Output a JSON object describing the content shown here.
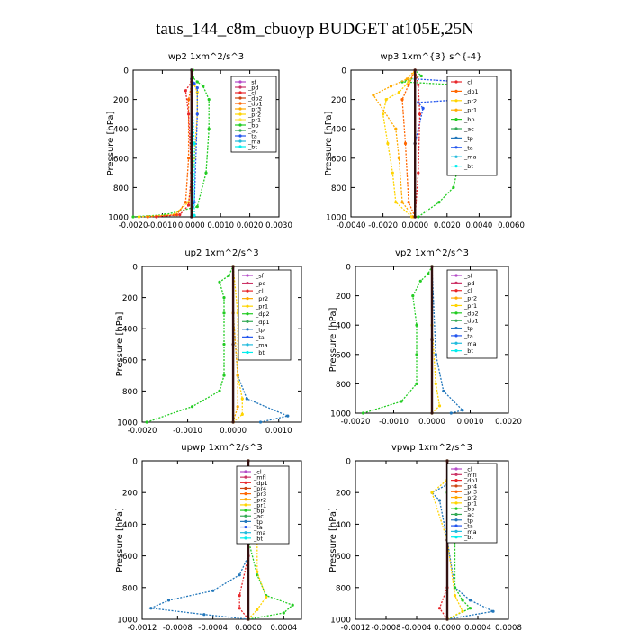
{
  "title": "taus_144_c8m_cbuoyp  BUDGET at105E,25N",
  "chart_data": [
    {
      "type": "line",
      "title": "wp2  1xm^2/s^3",
      "ylabel": "Pressure [hPa]",
      "xlim": [
        -0.002,
        0.003
      ],
      "ylim": [
        1000,
        0
      ],
      "xticks": [
        "-0.0020",
        "-0.0010",
        "0.0000",
        "0.0010",
        "0.0020",
        "0.0030"
      ],
      "yticks": [
        "0",
        "200",
        "400",
        "600",
        "800",
        "1000"
      ],
      "legend_position": "top-right",
      "legend": [
        "_sf",
        "_pd",
        "_cl",
        "_dp2",
        "_dp1",
        "_pr3",
        "_pr2",
        "_pr1",
        "_bp",
        "_ac",
        "_ta",
        "_ma",
        "_bt"
      ],
      "legend_colors": [
        "#b44ac8",
        "#cc3366",
        "#e8262a",
        "#cc4411",
        "#ff6600",
        "#ffaa00",
        "#ffd400",
        "#ffe24a",
        "#22cc22",
        "#33aa55",
        "#2255ee",
        "#22bbdd",
        "#00eeee"
      ],
      "series": [
        {
          "name": "_bp",
          "color": "#22cc22",
          "x": [
            -0.002,
            -0.0009,
            0.0002,
            0.0005,
            0.0006,
            0.0006,
            0.0004,
            0.0002,
            5e-05,
            5e-05
          ],
          "y": [
            1000,
            985,
            930,
            700,
            400,
            200,
            110,
            80,
            50,
            0
          ]
        },
        {
          "name": "_pr1",
          "color": "#ffd400",
          "x": [
            -0.0018,
            -0.0006,
            -0.0001,
            0.0001,
            0.0002,
            0.0002,
            0.0001,
            0.0,
            0.0
          ],
          "y": [
            1000,
            985,
            900,
            600,
            300,
            150,
            100,
            60,
            0
          ]
        },
        {
          "name": "_dp1",
          "color": "#ff6600",
          "x": [
            -0.0015,
            -0.0005,
            -0.0002,
            -0.0001,
            -0.0001,
            0.0,
            0.0
          ],
          "y": [
            1000,
            985,
            900,
            600,
            200,
            100,
            0
          ]
        },
        {
          "name": "_cl",
          "color": "#e8262a",
          "x": [
            -0.0012,
            -0.0004,
            -0.0001,
            0.0,
            -0.0001,
            -0.0002,
            0.0,
            0.0
          ],
          "y": [
            1000,
            985,
            920,
            700,
            300,
            140,
            80,
            0
          ]
        },
        {
          "name": "_ta",
          "color": "#2255ee",
          "x": [
            0.0,
            0.0001,
            0.0002,
            0.0002,
            0.0001,
            0.0,
            0.0
          ],
          "y": [
            1000,
            900,
            300,
            120,
            90,
            60,
            0
          ]
        },
        {
          "name": "_bt",
          "color": "#00eeee",
          "x": [
            0.0,
            0.0001,
            0.0001,
            0.0,
            0.0
          ],
          "y": [
            1000,
            990,
            500,
            100,
            0
          ]
        },
        {
          "name": "_ma",
          "color": "#331111",
          "x": [
            0.0,
            0.0,
            0.0
          ],
          "y": [
            1000,
            500,
            0
          ]
        }
      ]
    },
    {
      "type": "line",
      "title": "wp3  1xm^{3} s^{-4}",
      "ylabel": "Pressure [hPa]",
      "xlim": [
        -0.004,
        0.006
      ],
      "ylim": [
        1000,
        0
      ],
      "xticks": [
        "-0.0040",
        "-0.0020",
        "0.0000",
        "0.0020",
        "0.0040",
        "0.0060"
      ],
      "yticks": [
        "0",
        "200",
        "400",
        "600",
        "800",
        "1000"
      ],
      "legend_position": "top-right",
      "legend": [
        "_cl",
        "_dp1",
        "_pr2",
        "_pr1",
        "_bp",
        "_ac",
        "_tp",
        "_ta",
        "_ma",
        "_bt"
      ],
      "legend_colors": [
        "#e8262a",
        "#ff6600",
        "#ffd400",
        "#ffaa00",
        "#22cc22",
        "#33aa55",
        "#2277bb",
        "#2255ee",
        "#22bbdd",
        "#00eeee"
      ],
      "series": [
        {
          "name": "_bp",
          "color": "#22cc22",
          "x": [
            0.0002,
            0.0015,
            0.0024,
            0.0028,
            0.0028,
            0.003,
            0.0034,
            0.0025,
            -0.0008,
            0.0004,
            0.0
          ],
          "y": [
            1000,
            900,
            800,
            600,
            400,
            260,
            170,
            100,
            80,
            40,
            0
          ]
        },
        {
          "name": "_pr1",
          "color": "#ffd400",
          "x": [
            -0.0002,
            -0.0012,
            -0.0014,
            -0.0017,
            -0.002,
            -0.0018,
            -0.001,
            -0.0004,
            0.0
          ],
          "y": [
            1000,
            900,
            700,
            500,
            300,
            200,
            150,
            80,
            0
          ]
        },
        {
          "name": "_pr2",
          "color": "#ffaa00",
          "x": [
            -0.0001,
            -0.0008,
            -0.001,
            -0.0012,
            -0.0026,
            -0.0015,
            -0.0005,
            0.0
          ],
          "y": [
            1000,
            900,
            600,
            400,
            170,
            110,
            60,
            0
          ]
        },
        {
          "name": "_ta",
          "color": "#2255ee",
          "x": [
            0.0,
            0.0,
            0.0005,
            0.0002,
            0.003,
            0.004,
            0.003,
            0.0,
            0.0
          ],
          "y": [
            1000,
            500,
            260,
            220,
            200,
            120,
            80,
            60,
            0
          ]
        },
        {
          "name": "_dp1",
          "color": "#ff6600",
          "x": [
            0.0,
            -0.0004,
            -0.0006,
            -0.0008,
            -0.0004,
            0.0
          ],
          "y": [
            1000,
            900,
            500,
            200,
            100,
            0
          ]
        },
        {
          "name": "_cl",
          "color": "#e8262a",
          "x": [
            0.0,
            0.0002,
            0.0003,
            0.0002,
            0.0
          ],
          "y": [
            1000,
            700,
            300,
            100,
            0
          ]
        },
        {
          "name": "_ma",
          "color": "#331111",
          "x": [
            0.0,
            0.0,
            0.0
          ],
          "y": [
            1000,
            500,
            0
          ]
        }
      ]
    },
    {
      "type": "line",
      "title": "up2  1xm^2/s^3",
      "ylabel": "Pressure [hPa]",
      "xlim": [
        -0.002,
        0.0015
      ],
      "ylim": [
        1000,
        0
      ],
      "xticks": [
        "-0.0020",
        "-0.0010",
        "0.0000",
        "0.0010"
      ],
      "yticks": [
        "0",
        "200",
        "400",
        "600",
        "800",
        "1000"
      ],
      "legend_position": "top-right",
      "legend": [
        "_sf",
        "_pd",
        "_cl",
        "_pr2",
        "_pr1",
        "_dp2",
        "_dp1",
        "_tp",
        "_ta",
        "_ma",
        "_bt"
      ],
      "legend_colors": [
        "#b44ac8",
        "#cc3366",
        "#e8262a",
        "#ffaa00",
        "#ffd400",
        "#22cc22",
        "#33aa55",
        "#2277bb",
        "#2255ee",
        "#22bbdd",
        "#00eeee"
      ],
      "series": [
        {
          "name": "_dp2",
          "color": "#22cc22",
          "x": [
            -0.0019,
            -0.0009,
            -0.0003,
            -0.0002,
            -0.0002,
            -0.0002,
            -0.0002,
            -0.0003,
            -0.0001,
            0.0
          ],
          "y": [
            1000,
            900,
            800,
            700,
            500,
            300,
            200,
            100,
            60,
            0
          ]
        },
        {
          "name": "_tp",
          "color": "#2277bb",
          "x": [
            0.0006,
            0.0012,
            0.0003,
            0.0001,
            0.0,
            0.0
          ],
          "y": [
            1000,
            960,
            850,
            700,
            300,
            0
          ]
        },
        {
          "name": "_pr1",
          "color": "#ffd400",
          "x": [
            0.0,
            0.0002,
            0.0002,
            0.0001,
            0.0001,
            0.0
          ],
          "y": [
            1000,
            950,
            850,
            700,
            300,
            0
          ]
        },
        {
          "name": "_pr2",
          "color": "#ffaa00",
          "x": [
            0.0,
            0.0001,
            0.0001,
            0.0,
            0.0
          ],
          "y": [
            1000,
            900,
            700,
            300,
            0
          ]
        },
        {
          "name": "_ma",
          "color": "#331111",
          "x": [
            0.0,
            0.0,
            0.0
          ],
          "y": [
            1000,
            500,
            0
          ]
        }
      ]
    },
    {
      "type": "line",
      "title": "vp2  1xm^2/s^3",
      "ylabel": "Pressure [hPa]",
      "xlim": [
        -0.002,
        0.002
      ],
      "ylim": [
        1000,
        0
      ],
      "xticks": [
        "-0.0020",
        "-0.0010",
        "0.0000",
        "0.0010",
        "0.0020"
      ],
      "yticks": [
        "0",
        "200",
        "400",
        "600",
        "800",
        "1000"
      ],
      "legend_position": "top-right",
      "legend": [
        "_sf",
        "_pd",
        "_cl",
        "_pr2",
        "_pr1",
        "_dp2",
        "_dp1",
        "_tp",
        "_ta",
        "_ma",
        "_bt"
      ],
      "legend_colors": [
        "#b44ac8",
        "#cc3366",
        "#e8262a",
        "#ffaa00",
        "#ffd400",
        "#22cc22",
        "#33aa55",
        "#2277bb",
        "#2255ee",
        "#22bbdd",
        "#00eeee"
      ],
      "series": [
        {
          "name": "_dp2",
          "color": "#22cc22",
          "x": [
            -0.0018,
            -0.0008,
            -0.0004,
            -0.0004,
            -0.0004,
            -0.0005,
            -0.0003,
            -0.0001,
            0.0
          ],
          "y": [
            1000,
            920,
            800,
            600,
            400,
            200,
            100,
            50,
            0
          ]
        },
        {
          "name": "_tp",
          "color": "#2277bb",
          "x": [
            0.0005,
            0.0008,
            0.0003,
            0.0001,
            0.0
          ],
          "y": [
            1000,
            980,
            850,
            600,
            0
          ]
        },
        {
          "name": "_pr1",
          "color": "#ffd400",
          "x": [
            0.0,
            0.0002,
            0.0001,
            0.0,
            0.0
          ],
          "y": [
            1000,
            950,
            800,
            400,
            0
          ]
        },
        {
          "name": "_ma",
          "color": "#331111",
          "x": [
            0.0,
            0.0,
            0.0
          ],
          "y": [
            1000,
            500,
            0
          ]
        }
      ]
    },
    {
      "type": "line",
      "title": "upwp  1xm^2/s^3",
      "ylabel": "Pressure [hPa]",
      "xlim": [
        -0.0012,
        0.0006
      ],
      "ylim": [
        1000,
        0
      ],
      "xticks": [
        "-0.0012",
        "-0.0008",
        "-0.0004",
        "0.0000",
        "0.0004"
      ],
      "yticks": [
        "0",
        "200",
        "400",
        "600",
        "800",
        "1000"
      ],
      "legend_position": "top-right",
      "legend": [
        "_cl",
        "_mfl",
        "_dp1",
        "_pr4",
        "_pr3",
        "_pr2",
        "_pr1",
        "_bp",
        "_ac",
        "_tp",
        "_ta",
        "_ma",
        "_bt"
      ],
      "legend_colors": [
        "#b44ac8",
        "#cc3366",
        "#e8262a",
        "#cc4411",
        "#ff6600",
        "#ffaa00",
        "#ffd400",
        "#22cc22",
        "#33aa55",
        "#2277bb",
        "#2255ee",
        "#22bbdd",
        "#00eeee"
      ],
      "series": [
        {
          "name": "_tp",
          "color": "#2277bb",
          "x": [
            0.0,
            -0.0005,
            -0.0011,
            -0.0009,
            -0.0004,
            -0.0001,
            0.0,
            0.0,
            0.0
          ],
          "y": [
            1000,
            970,
            930,
            880,
            820,
            720,
            600,
            300,
            0
          ]
        },
        {
          "name": "_bp",
          "color": "#22cc22",
          "x": [
            0.0,
            0.0004,
            0.0005,
            0.0002,
            0.0001,
            0.0,
            -0.0001,
            -0.0001,
            0.0,
            0.0
          ],
          "y": [
            1000,
            960,
            910,
            850,
            720,
            500,
            200,
            130,
            80,
            0
          ]
        },
        {
          "name": "_pr1",
          "color": "#ffd400",
          "x": [
            0.0,
            0.0001,
            0.0002,
            0.0001,
            0.0001,
            0.0,
            0.0
          ],
          "y": [
            1000,
            940,
            860,
            700,
            500,
            150,
            0
          ]
        },
        {
          "name": "_dp1",
          "color": "#e8262a",
          "x": [
            0.0,
            -0.0001,
            -0.0001,
            0.0,
            0.0
          ],
          "y": [
            1000,
            930,
            850,
            600,
            0
          ]
        },
        {
          "name": "_ma",
          "color": "#331111",
          "x": [
            0.0,
            0.0,
            0.0
          ],
          "y": [
            1000,
            500,
            0
          ]
        }
      ]
    },
    {
      "type": "line",
      "title": "vpwp  1xm^2/s^3",
      "ylabel": "Pressure [hPa]",
      "xlim": [
        -0.0012,
        0.0008
      ],
      "ylim": [
        1000,
        0
      ],
      "xticks": [
        "-0.0012",
        "-0.0008",
        "-0.0004",
        "0.0000",
        "0.0004",
        "0.0008"
      ],
      "yticks": [
        "0",
        "200",
        "400",
        "600",
        "800",
        "1000"
      ],
      "legend_position": "top-right",
      "legend": [
        "_cl",
        "_mfl",
        "_dp1",
        "_pr4",
        "_pr3",
        "_pr2",
        "_pr1",
        "_bp",
        "_ac",
        "_tp",
        "_ta",
        "_ma",
        "_bt"
      ],
      "legend_colors": [
        "#b44ac8",
        "#cc3366",
        "#e8262a",
        "#cc4411",
        "#ff6600",
        "#ffaa00",
        "#ffd400",
        "#22cc22",
        "#33aa55",
        "#2277bb",
        "#2255ee",
        "#22bbdd",
        "#00eeee"
      ],
      "series": [
        {
          "name": "_tp",
          "color": "#2277bb",
          "x": [
            0.0,
            0.0006,
            0.0003,
            0.0001,
            0.0,
            -0.0001,
            -0.0002,
            0.0,
            0.0
          ],
          "y": [
            1000,
            950,
            880,
            800,
            500,
            250,
            200,
            150,
            0
          ]
        },
        {
          "name": "_bp",
          "color": "#22cc22",
          "x": [
            0.0,
            0.0003,
            0.0002,
            0.0001,
            0.0001,
            0.0,
            0.0
          ],
          "y": [
            1000,
            930,
            880,
            800,
            500,
            200,
            0
          ]
        },
        {
          "name": "_pr1",
          "color": "#ffd400",
          "x": [
            0.0,
            0.0002,
            0.0001,
            0.0,
            -0.0002,
            0.0,
            0.0
          ],
          "y": [
            1000,
            950,
            850,
            500,
            200,
            120,
            0
          ]
        },
        {
          "name": "_dp1",
          "color": "#e8262a",
          "x": [
            0.0,
            -0.0001,
            0.0,
            0.0
          ],
          "y": [
            1000,
            930,
            800,
            0
          ]
        },
        {
          "name": "_ma",
          "color": "#331111",
          "x": [
            0.0,
            0.0,
            0.0
          ],
          "y": [
            1000,
            500,
            0
          ]
        }
      ]
    }
  ]
}
